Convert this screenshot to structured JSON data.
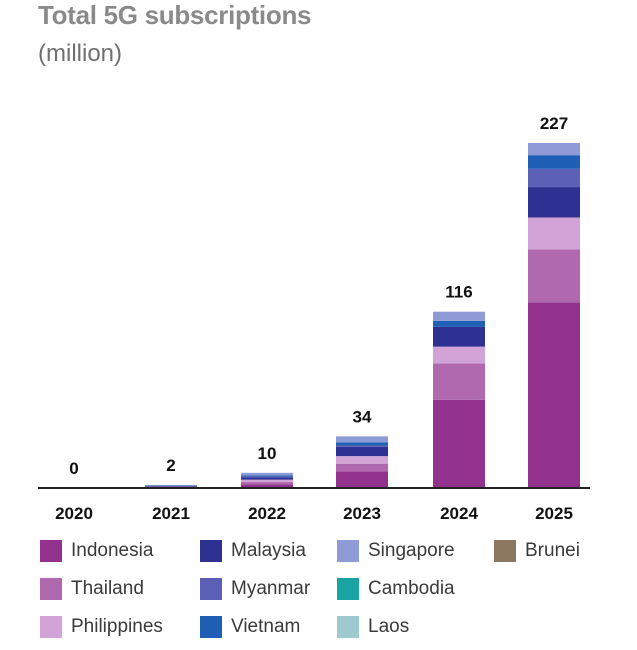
{
  "title": "Total 5G subscriptions",
  "subtitle": "(million)",
  "chart_data": {
    "type": "bar",
    "stacked": true,
    "title": "Total 5G subscriptions",
    "subtitle": "(million)",
    "xlabel": "",
    "ylabel": "",
    "ylim": [
      0,
      230
    ],
    "grid": false,
    "legend_position": "bottom",
    "categories": [
      "2020",
      "2021",
      "2022",
      "2023",
      "2024",
      "2025"
    ],
    "totals": [
      0,
      2,
      10,
      34,
      116,
      227
    ],
    "total_labels": [
      "0",
      "2",
      "10",
      "34",
      "116",
      "227"
    ],
    "series": [
      {
        "name": "Indonesia",
        "color": "#93328e",
        "values": [
          0,
          0.4,
          2.5,
          11,
          58,
          122
        ]
      },
      {
        "name": "Thailand",
        "color": "#b068ae",
        "values": [
          0,
          0.3,
          1.5,
          5,
          24,
          35
        ]
      },
      {
        "name": "Philippines",
        "color": "#d2a3d6",
        "values": [
          0,
          0.2,
          1.5,
          5,
          11,
          21
        ]
      },
      {
        "name": "Malaysia",
        "color": "#2e3192",
        "values": [
          0,
          0.5,
          1.5,
          6,
          13,
          20
        ]
      },
      {
        "name": "Myanmar",
        "color": "#5b5fb5",
        "values": [
          0,
          0,
          0.5,
          1,
          0,
          12
        ]
      },
      {
        "name": "Vietnam",
        "color": "#1f5fb5",
        "values": [
          0,
          0.3,
          0.8,
          2,
          4,
          9
        ]
      },
      {
        "name": "Singapore",
        "color": "#8f9bd6",
        "values": [
          0,
          0.3,
          1.7,
          4,
          6,
          8
        ]
      },
      {
        "name": "Cambodia",
        "color": "#1aa3a3",
        "values": [
          0,
          0,
          0,
          0,
          0,
          0
        ]
      },
      {
        "name": "Laos",
        "color": "#9ec9cf",
        "values": [
          0,
          0,
          0,
          0,
          0,
          0
        ]
      },
      {
        "name": "Brunei",
        "color": "#8c7860",
        "values": [
          0,
          0,
          0,
          0,
          0,
          0
        ]
      }
    ]
  },
  "legend": [
    {
      "label": "Indonesia",
      "color": "#93328e"
    },
    {
      "label": "Malaysia",
      "color": "#2e3192"
    },
    {
      "label": "Singapore",
      "color": "#8f9bd6"
    },
    {
      "label": "Brunei",
      "color": "#8c7860"
    },
    {
      "label": "Thailand",
      "color": "#b068ae"
    },
    {
      "label": "Myanmar",
      "color": "#5b5fb5"
    },
    {
      "label": "Cambodia",
      "color": "#1aa3a3"
    },
    {
      "label": "Philippines",
      "color": "#d2a3d6"
    },
    {
      "label": "Vietnam",
      "color": "#1f5fb5"
    },
    {
      "label": "Laos",
      "color": "#9ec9cf"
    }
  ]
}
